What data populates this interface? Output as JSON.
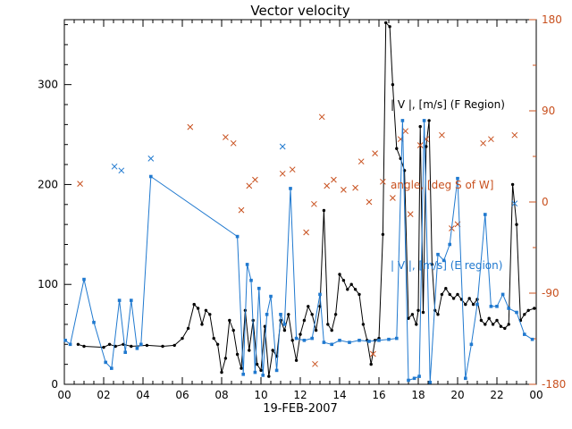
{
  "chart_data": {
    "type": "line",
    "title": "Vector velocity",
    "xlabel": "19-FEB-2007",
    "xlim": [
      0,
      24
    ],
    "ylim_left": [
      0,
      365
    ],
    "ylim_right": [
      -180,
      180
    ],
    "x_ticks": {
      "values": [
        0,
        2,
        4,
        6,
        8,
        10,
        12,
        14,
        16,
        18,
        20,
        22,
        24
      ],
      "labels": [
        "00",
        "02",
        "04",
        "06",
        "08",
        "10",
        "12",
        "14",
        "16",
        "18",
        "20",
        "22",
        "00"
      ],
      "minor_step": 0.5
    },
    "y_left_ticks": {
      "values": [
        0,
        100,
        200,
        300
      ],
      "labels": [
        "0",
        "100",
        "200",
        "300"
      ],
      "minor_step": 20
    },
    "y_right_ticks": {
      "values": [
        -180,
        -90,
        0,
        90,
        180
      ],
      "labels": [
        "-180",
        "-90",
        "0",
        "90",
        "180"
      ],
      "minor_step": 45
    },
    "colors": {
      "black": "#000000",
      "red": "#c8501e",
      "blue": "#2079cf",
      "background": "#ffffff"
    },
    "legend": [
      {
        "label": "| V |, [m/s] (F Region)",
        "color": "#000000"
      },
      {
        "label": "angle, [deg S of W]",
        "color": "#c8501e"
      },
      {
        "label": "| V |, [m/s] (E region)",
        "color": "#2079cf"
      }
    ],
    "series": [
      {
        "name": "f-region-velocity",
        "axis": "left",
        "draw": "line+marker",
        "marker": "dot",
        "color": "black",
        "points": [
          [
            0.7,
            40
          ],
          [
            1.0,
            38
          ],
          [
            2.0,
            37
          ],
          [
            2.3,
            40
          ],
          [
            2.6,
            38
          ],
          [
            3.0,
            40
          ],
          [
            3.4,
            38
          ],
          [
            4.2,
            39
          ],
          [
            5.0,
            38
          ],
          [
            5.6,
            39
          ],
          [
            6.0,
            46
          ],
          [
            6.3,
            56
          ],
          [
            6.6,
            80
          ],
          [
            6.8,
            76
          ],
          [
            7.0,
            60
          ],
          [
            7.2,
            74
          ],
          [
            7.4,
            70
          ],
          [
            7.6,
            46
          ],
          [
            7.8,
            40
          ],
          [
            8.0,
            12
          ],
          [
            8.2,
            26
          ],
          [
            8.4,
            64
          ],
          [
            8.6,
            54
          ],
          [
            8.8,
            30
          ],
          [
            9.0,
            16
          ],
          [
            9.2,
            74
          ],
          [
            9.4,
            34
          ],
          [
            9.6,
            64
          ],
          [
            9.8,
            20
          ],
          [
            10.0,
            14
          ],
          [
            10.2,
            58
          ],
          [
            10.4,
            8
          ],
          [
            10.6,
            34
          ],
          [
            10.8,
            28
          ],
          [
            11.0,
            64
          ],
          [
            11.2,
            54
          ],
          [
            11.4,
            70
          ],
          [
            11.6,
            44
          ],
          [
            11.8,
            24
          ],
          [
            12.0,
            50
          ],
          [
            12.2,
            64
          ],
          [
            12.4,
            78
          ],
          [
            12.6,
            70
          ],
          [
            12.8,
            54
          ],
          [
            13.0,
            78
          ],
          [
            13.2,
            174
          ],
          [
            13.4,
            60
          ],
          [
            13.6,
            54
          ],
          [
            13.8,
            70
          ],
          [
            14.0,
            110
          ],
          [
            14.2,
            104
          ],
          [
            14.4,
            95
          ],
          [
            14.6,
            100
          ],
          [
            14.8,
            95
          ],
          [
            15.0,
            90
          ],
          [
            15.2,
            60
          ],
          [
            15.4,
            44
          ],
          [
            15.6,
            20
          ],
          [
            15.8,
            44
          ],
          [
            16.0,
            46
          ],
          [
            16.2,
            150
          ],
          [
            16.35,
            362
          ],
          [
            16.55,
            358
          ],
          [
            16.7,
            300
          ],
          [
            16.9,
            236
          ],
          [
            17.1,
            226
          ],
          [
            17.3,
            214
          ],
          [
            17.5,
            66
          ],
          [
            17.7,
            70
          ],
          [
            17.9,
            60
          ],
          [
            18.0,
            74
          ],
          [
            18.1,
            258
          ],
          [
            18.25,
            72
          ],
          [
            18.4,
            238
          ],
          [
            18.55,
            264
          ],
          [
            18.7,
            120
          ],
          [
            18.85,
            74
          ],
          [
            19.0,
            70
          ],
          [
            19.2,
            90
          ],
          [
            19.4,
            96
          ],
          [
            19.6,
            90
          ],
          [
            19.8,
            86
          ],
          [
            20.0,
            90
          ],
          [
            20.2,
            85
          ],
          [
            20.4,
            80
          ],
          [
            20.6,
            86
          ],
          [
            20.8,
            80
          ],
          [
            21.0,
            85
          ],
          [
            21.2,
            64
          ],
          [
            21.4,
            60
          ],
          [
            21.6,
            66
          ],
          [
            21.8,
            60
          ],
          [
            22.0,
            64
          ],
          [
            22.2,
            58
          ],
          [
            22.4,
            56
          ],
          [
            22.6,
            60
          ],
          [
            22.8,
            200
          ],
          [
            23.0,
            160
          ],
          [
            23.2,
            64
          ],
          [
            23.4,
            70
          ],
          [
            23.6,
            74
          ],
          [
            23.9,
            76
          ]
        ]
      },
      {
        "name": "angle",
        "axis": "right",
        "draw": "scatter",
        "marker": "x",
        "color": "red",
        "points": [
          [
            0.8,
            18
          ],
          [
            6.4,
            74
          ],
          [
            8.2,
            64
          ],
          [
            8.6,
            58
          ],
          [
            9.0,
            -8
          ],
          [
            9.4,
            16
          ],
          [
            9.7,
            22
          ],
          [
            11.1,
            28
          ],
          [
            11.6,
            32
          ],
          [
            12.3,
            -30
          ],
          [
            12.7,
            -2
          ],
          [
            12.75,
            -160
          ],
          [
            13.1,
            84
          ],
          [
            13.35,
            16
          ],
          [
            13.7,
            22
          ],
          [
            14.2,
            12
          ],
          [
            14.8,
            14
          ],
          [
            15.1,
            40
          ],
          [
            15.5,
            0
          ],
          [
            15.7,
            -150
          ],
          [
            15.8,
            48
          ],
          [
            16.2,
            20
          ],
          [
            16.7,
            4
          ],
          [
            17.1,
            62
          ],
          [
            17.35,
            70
          ],
          [
            17.6,
            -12
          ],
          [
            18.1,
            56
          ],
          [
            18.4,
            62
          ],
          [
            19.2,
            66
          ],
          [
            19.7,
            -26
          ],
          [
            20.0,
            -22
          ],
          [
            21.3,
            58
          ],
          [
            21.7,
            62
          ],
          [
            22.9,
            66
          ]
        ]
      },
      {
        "name": "e-region-velocity",
        "axis": "left",
        "draw": "line+marker",
        "marker": "square",
        "color": "blue",
        "points": [
          [
            0.05,
            44
          ],
          [
            0.3,
            40
          ],
          [
            1.0,
            105
          ],
          [
            1.5,
            62
          ],
          [
            2.1,
            22
          ],
          [
            2.4,
            16
          ],
          [
            2.8,
            84
          ],
          [
            3.1,
            32
          ],
          [
            3.4,
            84
          ],
          [
            3.7,
            36
          ],
          [
            3.9,
            40
          ],
          [
            4.4,
            208
          ],
          [
            8.8,
            148
          ],
          [
            9.1,
            10
          ],
          [
            9.3,
            120
          ],
          [
            9.5,
            104
          ],
          [
            9.7,
            12
          ],
          [
            9.9,
            96
          ],
          [
            10.1,
            9
          ],
          [
            10.3,
            70
          ],
          [
            10.5,
            88
          ],
          [
            10.8,
            14
          ],
          [
            11.0,
            70
          ],
          [
            11.2,
            60
          ],
          [
            11.5,
            196
          ],
          [
            11.8,
            46
          ],
          [
            12.2,
            44
          ],
          [
            12.6,
            46
          ],
          [
            13.0,
            90
          ],
          [
            13.2,
            42
          ],
          [
            13.6,
            40
          ],
          [
            14.0,
            44
          ],
          [
            14.5,
            42
          ],
          [
            15.0,
            44
          ],
          [
            15.5,
            43
          ],
          [
            16.0,
            44
          ],
          [
            16.5,
            45
          ],
          [
            16.9,
            46
          ],
          [
            17.2,
            264
          ],
          [
            17.5,
            4
          ],
          [
            17.8,
            6
          ],
          [
            18.05,
            8
          ],
          [
            18.3,
            264
          ],
          [
            18.6,
            2
          ],
          [
            19.0,
            130
          ],
          [
            19.3,
            124
          ],
          [
            19.6,
            140
          ],
          [
            20.0,
            206
          ],
          [
            20.4,
            6
          ],
          [
            20.7,
            40
          ],
          [
            21.0,
            80
          ],
          [
            21.4,
            170
          ],
          [
            21.7,
            78
          ],
          [
            22.0,
            78
          ],
          [
            22.3,
            90
          ],
          [
            22.6,
            76
          ],
          [
            23.0,
            72
          ],
          [
            23.4,
            50
          ],
          [
            23.8,
            45
          ]
        ]
      },
      {
        "name": "e-region-extra-points",
        "axis": "left",
        "draw": "scatter",
        "marker": "x",
        "color": "blue",
        "points": [
          [
            2.55,
            218
          ],
          [
            2.9,
            214
          ],
          [
            4.4,
            226
          ],
          [
            11.1,
            238
          ],
          [
            22.9,
            181
          ]
        ]
      }
    ]
  }
}
